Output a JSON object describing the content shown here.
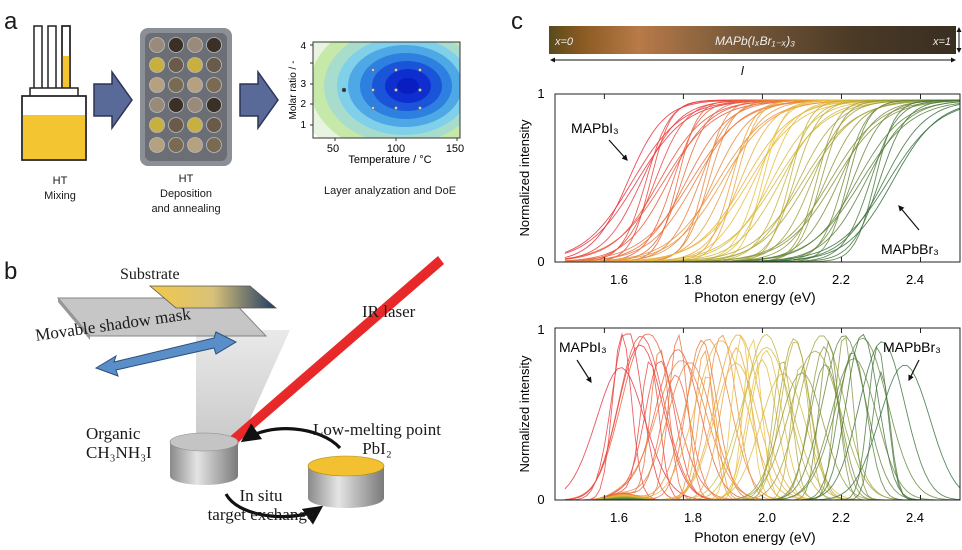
{
  "panels": {
    "a": "a",
    "b": "b",
    "c": "c"
  },
  "panel_a": {
    "step1_line1": "HT",
    "step1_line2": "Mixing",
    "step2_line1": "HT",
    "step2_line2": "Deposition",
    "step2_line3": "and annealing",
    "step3": "Layer analyzation and DoE",
    "contour": {
      "xlabel": "Temperature / °C",
      "ylabel": "Molar ratio / -",
      "xticks": [
        "50",
        "100",
        "150"
      ],
      "yticks": [
        "1",
        "2",
        "3",
        "4"
      ]
    }
  },
  "panel_b": {
    "substrate": "Substrate",
    "mask": "Movable shadow mask",
    "laser": "IR laser",
    "organic_line1": "Organic",
    "organic_formula": "CH₃NH₃I",
    "lowmelt_line1": "Low-melting point",
    "lowmelt_formula": "PbI₂",
    "exchange_line1": "In situ",
    "exchange_line2": "target exchange"
  },
  "panel_c": {
    "gradient_left": "x=0",
    "gradient_center": "MAPb(IₓBr₁₋ₓ)₃",
    "gradient_right": "x=1",
    "length_label": "l",
    "colors": {
      "iodide": "#e8283a",
      "mid": "#e8c23a",
      "bromide": "#2e6b3a"
    },
    "plot1": {
      "xlabel": "Photon energy (eV)",
      "ylabel": "Normalized intensity",
      "xticks": [
        "1.6",
        "1.8",
        "2.0",
        "2.2",
        "2.4"
      ],
      "yticks": [
        "0",
        "1"
      ],
      "label_left": "MAPbI₃",
      "label_right": "MAPbBr₃"
    },
    "plot2": {
      "xlabel": "Photon energy (eV)",
      "ylabel": "Normalized intensity",
      "xticks": [
        "1.6",
        "1.8",
        "2.0",
        "2.2",
        "2.4"
      ],
      "yticks": [
        "0",
        "1"
      ],
      "label_left": "MAPbI₃",
      "label_right": "MAPbBr₃"
    }
  }
}
